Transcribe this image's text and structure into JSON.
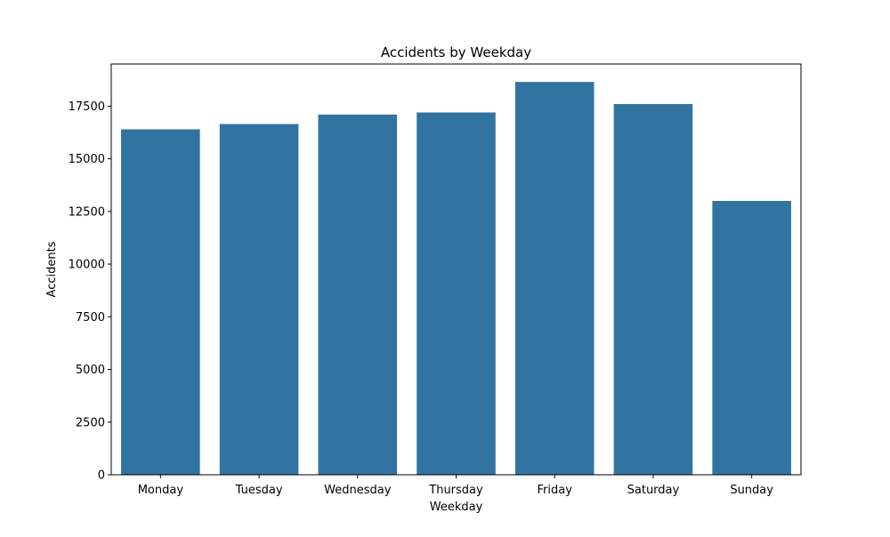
{
  "chart_data": {
    "type": "bar",
    "title": "Accidents by Weekday",
    "xlabel": "Weekday",
    "ylabel": "Accidents",
    "categories": [
      "Monday",
      "Tuesday",
      "Wednesday",
      "Thursday",
      "Friday",
      "Saturday",
      "Sunday"
    ],
    "values": [
      16400,
      16650,
      17100,
      17200,
      18650,
      17600,
      13000
    ],
    "ylim": [
      0,
      19500
    ],
    "yticks": [
      0,
      2500,
      5000,
      7500,
      10000,
      12500,
      15000,
      17500
    ],
    "ytick_labels": [
      "0",
      "2500",
      "5000",
      "7500",
      "10000",
      "12500",
      "15000",
      "17500"
    ],
    "grid": false,
    "bar_color": "#3274a1"
  }
}
